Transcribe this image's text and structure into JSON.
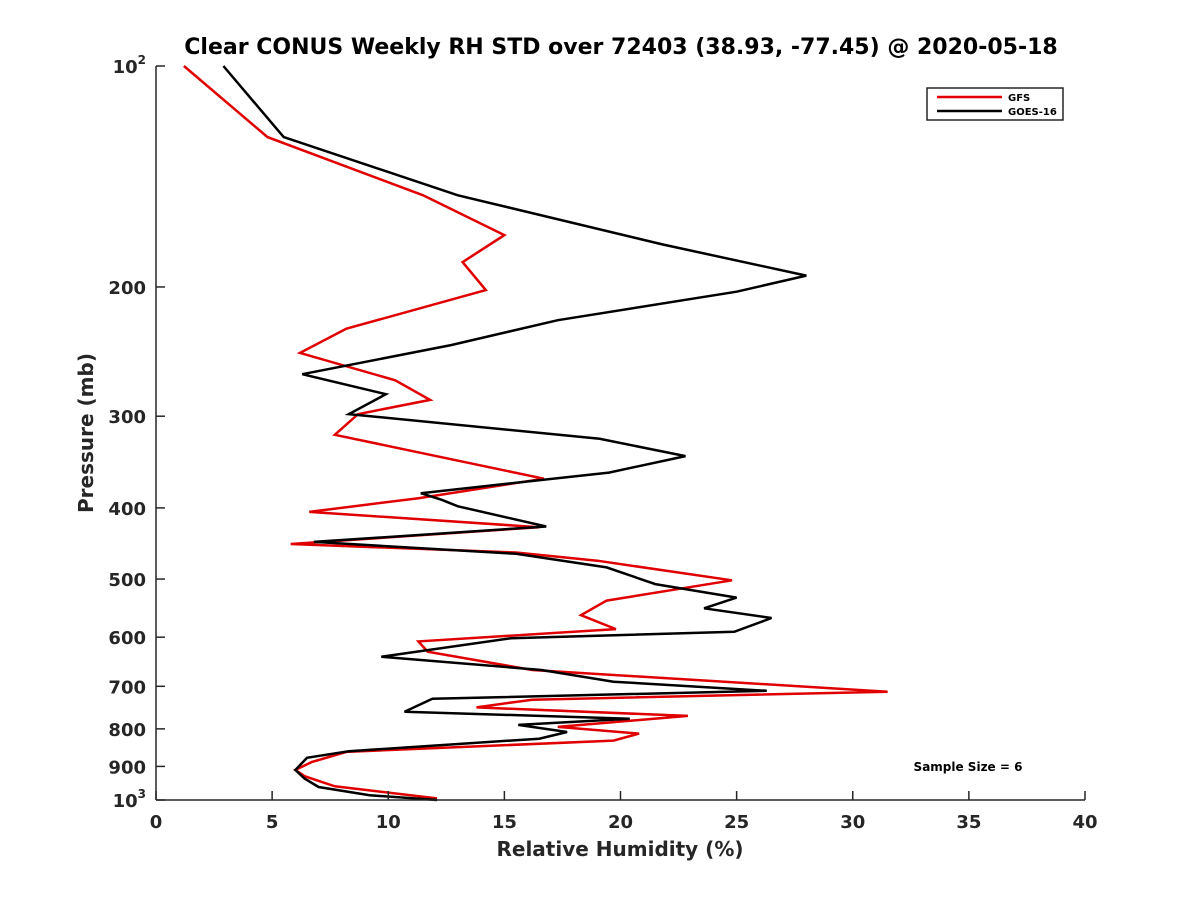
{
  "chart_data": {
    "type": "line",
    "title": "Clear CONUS Weekly RH STD over 72403 (38.93, -77.45) @ 2020-05-18",
    "xlabel": "Relative Humidity (%)",
    "ylabel": "Pressure (mb)",
    "xlim": [
      0,
      40
    ],
    "ylim": [
      100,
      1000
    ],
    "y_scale": "log",
    "y_reversed": true,
    "grid": false,
    "legend_position": "top-right",
    "x_ticks": [
      "0",
      "5",
      "10",
      "15",
      "20",
      "25",
      "30",
      "35",
      "40"
    ],
    "y_ticks": [
      {
        "value": 100,
        "base": "10",
        "exp": "2"
      },
      {
        "value": 200,
        "label": "200"
      },
      {
        "value": 300,
        "label": "300"
      },
      {
        "value": 400,
        "label": "400"
      },
      {
        "value": 500,
        "label": "500"
      },
      {
        "value": 600,
        "label": "600"
      },
      {
        "value": 700,
        "label": "700"
      },
      {
        "value": 800,
        "label": "800"
      },
      {
        "value": 900,
        "label": "900"
      },
      {
        "value": 1000,
        "base": "10",
        "exp": "3"
      }
    ],
    "annotation": "Sample Size = 6",
    "series": [
      {
        "name": "GFS",
        "color": "#e00000",
        "points": [
          [
            1.2,
            100
          ],
          [
            4.8,
            125
          ],
          [
            11.5,
            150
          ],
          [
            15.0,
            170
          ],
          [
            13.2,
            185
          ],
          [
            14.2,
            202
          ],
          [
            8.2,
            228
          ],
          [
            6.2,
            246
          ],
          [
            10.3,
            268
          ],
          [
            11.8,
            285
          ],
          [
            8.7,
            298
          ],
          [
            7.7,
            318
          ],
          [
            16.7,
            365
          ],
          [
            11.3,
            388
          ],
          [
            6.6,
            405
          ],
          [
            16.5,
            425
          ],
          [
            5.8,
            448
          ],
          [
            15.5,
            460
          ],
          [
            19.0,
            472
          ],
          [
            24.8,
            502
          ],
          [
            19.4,
            535
          ],
          [
            18.3,
            560
          ],
          [
            19.8,
            585
          ],
          [
            11.3,
            608
          ],
          [
            11.7,
            628
          ],
          [
            16.2,
            665
          ],
          [
            31.5,
            712
          ],
          [
            16.2,
            730
          ],
          [
            13.8,
            748
          ],
          [
            22.9,
            768
          ],
          [
            17.3,
            795
          ],
          [
            20.8,
            812
          ],
          [
            19.7,
            830
          ],
          [
            8.2,
            860
          ],
          [
            6.7,
            888
          ],
          [
            6.0,
            910
          ],
          [
            6.4,
            928
          ],
          [
            7.7,
            958
          ],
          [
            12.1,
            995
          ]
        ]
      },
      {
        "name": "GOES-16",
        "color": "#000000",
        "points": [
          [
            2.9,
            100
          ],
          [
            5.5,
            125
          ],
          [
            13.0,
            150
          ],
          [
            21.8,
            175
          ],
          [
            28.0,
            193
          ],
          [
            25.0,
            203
          ],
          [
            17.3,
            222
          ],
          [
            12.7,
            240
          ],
          [
            6.3,
            263
          ],
          [
            9.9,
            280
          ],
          [
            8.3,
            298
          ],
          [
            19.1,
            322
          ],
          [
            22.8,
            340
          ],
          [
            19.5,
            358
          ],
          [
            11.4,
            382
          ],
          [
            12.3,
            390
          ],
          [
            13.0,
            398
          ],
          [
            16.8,
            424
          ],
          [
            6.8,
            445
          ],
          [
            15.5,
            462
          ],
          [
            19.4,
            482
          ],
          [
            21.5,
            508
          ],
          [
            25.0,
            530
          ],
          [
            23.6,
            548
          ],
          [
            26.5,
            565
          ],
          [
            24.9,
            590
          ],
          [
            15.3,
            602
          ],
          [
            9.7,
            638
          ],
          [
            16.6,
            665
          ],
          [
            19.7,
            690
          ],
          [
            26.3,
            710
          ],
          [
            11.9,
            728
          ],
          [
            10.7,
            758
          ],
          [
            20.4,
            775
          ],
          [
            15.6,
            790
          ],
          [
            17.7,
            808
          ],
          [
            16.5,
            825
          ],
          [
            8.3,
            858
          ],
          [
            6.5,
            876
          ],
          [
            6.0,
            910
          ],
          [
            6.4,
            935
          ],
          [
            7.0,
            960
          ],
          [
            9.2,
            985
          ],
          [
            12.1,
            1000
          ]
        ]
      }
    ]
  }
}
